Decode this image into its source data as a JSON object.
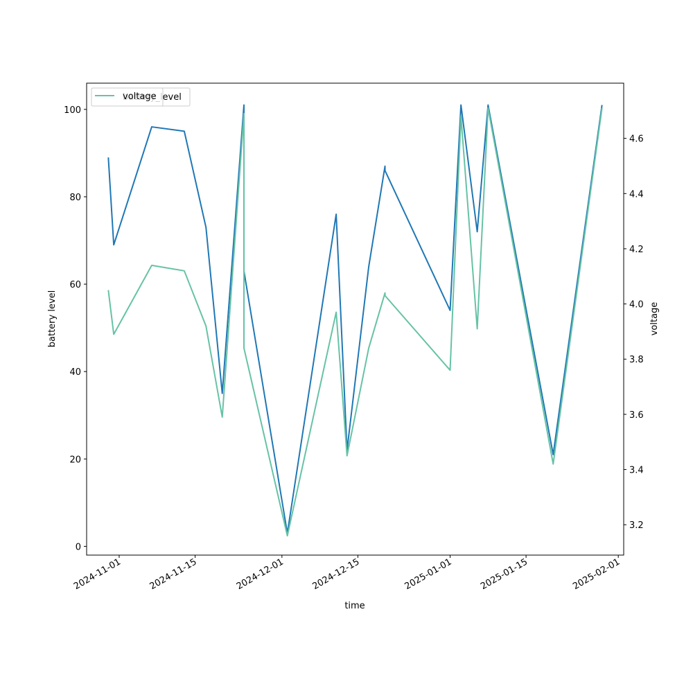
{
  "chart_data": {
    "type": "line",
    "title": "",
    "xlabel": "time",
    "ylabel_left": "battery level",
    "ylabel_right": "voltage",
    "x_tick_labels": [
      "2024-11-01",
      "2024-11-15",
      "2024-12-01",
      "2024-12-15",
      "2025-01-01",
      "2025-01-15",
      "2025-02-01"
    ],
    "x_ticks": [
      "2024-11-01",
      "2024-11-15",
      "2024-12-01",
      "2024-12-15",
      "2025-01-01",
      "2025-01-15",
      "2025-02-01"
    ],
    "xlim": [
      "2024-10-26",
      "2025-02-02"
    ],
    "y_left_ticks": [
      0,
      20,
      40,
      60,
      80,
      100
    ],
    "y_left_tick_labels": [
      "0",
      "20",
      "40",
      "60",
      "80",
      "100"
    ],
    "y_left_lim": [
      -2,
      106
    ],
    "y_right_ticks": [
      3.2,
      3.4,
      3.6,
      3.8,
      4.0,
      4.2,
      4.4,
      4.6
    ],
    "y_right_tick_labels": [
      "3.2",
      "3.4",
      "3.6",
      "3.8",
      "4.0",
      "4.2",
      "4.4",
      "4.6"
    ],
    "y_right_lim": [
      3.09,
      4.8
    ],
    "grid": false,
    "legend_left": {
      "placement": "upper-left",
      "entries": [
        "battery_level"
      ]
    },
    "legend_right": {
      "placement": "upper-left",
      "entries": [
        "voltage"
      ]
    },
    "series": [
      {
        "name": "battery_level",
        "axis": "left",
        "color": "#1f77b4",
        "points": [
          [
            "2024-10-30",
            89
          ],
          [
            "2024-10-31",
            69
          ],
          [
            "2024-11-07",
            96
          ],
          [
            "2024-11-13",
            95
          ],
          [
            "2024-11-17",
            73
          ],
          [
            "2024-11-20",
            35
          ],
          [
            "2024-11-24",
            101
          ],
          [
            "2024-11-24",
            63
          ],
          [
            "2024-12-02",
            3
          ],
          [
            "2024-12-11",
            76
          ],
          [
            "2024-12-13",
            22
          ],
          [
            "2024-12-17",
            64
          ],
          [
            "2024-12-20",
            87
          ],
          [
            "2024-12-20",
            86
          ],
          [
            "2025-01-01",
            54
          ],
          [
            "2025-01-03",
            101
          ],
          [
            "2025-01-06",
            72
          ],
          [
            "2025-01-08",
            101
          ],
          [
            "2025-01-20",
            21
          ],
          [
            "2025-01-29",
            101
          ]
        ]
      },
      {
        "name": "voltage",
        "axis": "right",
        "color": "#66c2a5",
        "points": [
          [
            "2024-10-30",
            4.05
          ],
          [
            "2024-10-31",
            3.89
          ],
          [
            "2024-11-07",
            4.14
          ],
          [
            "2024-11-13",
            4.12
          ],
          [
            "2024-11-17",
            3.92
          ],
          [
            "2024-11-20",
            3.59
          ],
          [
            "2024-11-24",
            4.69
          ],
          [
            "2024-11-24",
            3.84
          ],
          [
            "2024-12-02",
            3.16
          ],
          [
            "2024-12-11",
            3.97
          ],
          [
            "2024-12-13",
            3.45
          ],
          [
            "2024-12-17",
            3.84
          ],
          [
            "2024-12-20",
            4.04
          ],
          [
            "2024-12-20",
            4.03
          ],
          [
            "2025-01-01",
            3.76
          ],
          [
            "2025-01-03",
            4.68
          ],
          [
            "2025-01-06",
            3.91
          ],
          [
            "2025-01-08",
            4.71
          ],
          [
            "2025-01-20",
            3.42
          ],
          [
            "2025-01-29",
            4.71
          ]
        ]
      }
    ]
  }
}
